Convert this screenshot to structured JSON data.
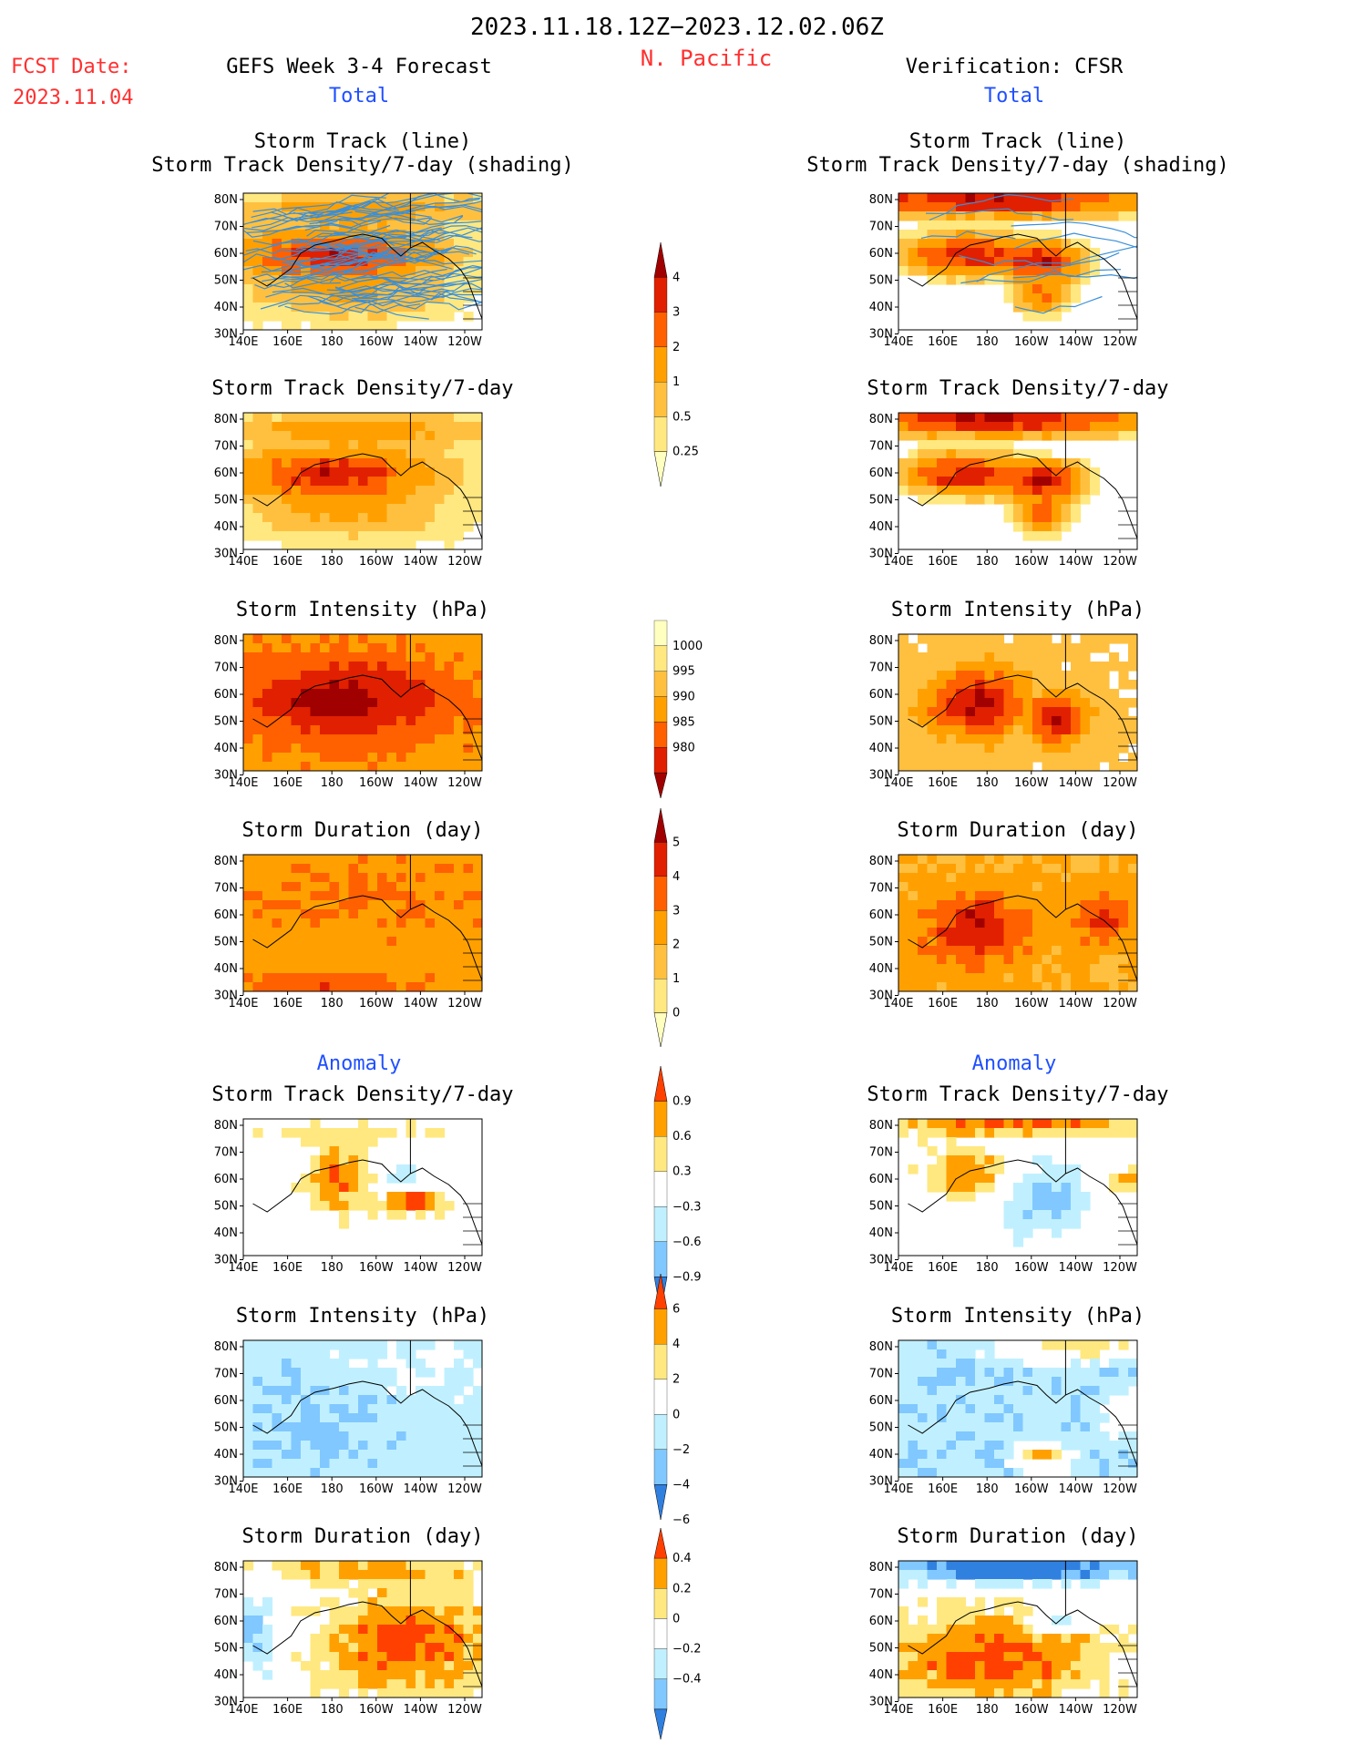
{
  "header": {
    "date_range": "2023.11.18.12Z−2023.12.02.06Z",
    "region": "N. Pacific",
    "fcst_label": "FCST Date:",
    "fcst_date": "2023.11.04",
    "left_title": "GEFS Week 3-4 Forecast",
    "right_title": "Verification: CFSR",
    "total_label": "Total",
    "anomaly_label": "Anomaly"
  },
  "map_axes": {
    "lat_ticks": [
      "80N",
      "70N",
      "60N",
      "50N",
      "40N",
      "30N"
    ],
    "lon_ticks": [
      "140E",
      "160E",
      "180",
      "160W",
      "140W",
      "120W"
    ]
  },
  "colors": {
    "total_scale": [
      "#ffffc0",
      "#ffe880",
      "#ffc040",
      "#ffa000",
      "#ff6000",
      "#e02000",
      "#a00000"
    ],
    "anomaly_pos": [
      "#ffe880",
      "#ffa000",
      "#ff4000"
    ],
    "anomaly_neg": [
      "#c0f0ff",
      "#80c8ff",
      "#3080e0"
    ],
    "track_line": "#3a8fd8",
    "text_red": "#ff3030",
    "text_blue": "#2050ff"
  },
  "colorbars": [
    {
      "id": "density-total",
      "labels": [
        "4",
        "3",
        "2",
        "1",
        "0.5",
        "0.25"
      ]
    },
    {
      "id": "intensity-total",
      "labels": [
        "1000",
        "995",
        "990",
        "985",
        "980"
      ]
    },
    {
      "id": "duration-total",
      "labels": [
        "5",
        "4",
        "3",
        "2",
        "1",
        "0"
      ]
    },
    {
      "id": "density-anom",
      "labels": [
        "0.9",
        "0.6",
        "0.3",
        "−0.3",
        "−0.6",
        "−0.9"
      ]
    },
    {
      "id": "intensity-anom",
      "labels": [
        "6",
        "4",
        "2",
        "0",
        "−2",
        "−4",
        "−6"
      ]
    },
    {
      "id": "duration-anom",
      "labels": [
        "0.4",
        "0.2",
        "0",
        "−0.2",
        "−0.4"
      ]
    }
  ],
  "panels": [
    {
      "id": "l1",
      "title1": "Storm Track (line)",
      "title2": "Storm Track Density/7-day (shading)",
      "kind": "total",
      "tracks": true
    },
    {
      "id": "r1",
      "title1": "Storm Track (line)",
      "title2": "Storm Track Density/7-day (shading)",
      "kind": "total",
      "tracks": true
    },
    {
      "id": "l2",
      "title1": "Storm Track Density/7-day",
      "kind": "total"
    },
    {
      "id": "r2",
      "title1": "Storm Track Density/7-day",
      "kind": "total"
    },
    {
      "id": "l3",
      "title1": "Storm Intensity (hPa)",
      "kind": "total"
    },
    {
      "id": "r3",
      "title1": "Storm Intensity (hPa)",
      "kind": "total"
    },
    {
      "id": "l4",
      "title1": "Storm Duration (day)",
      "kind": "total"
    },
    {
      "id": "r4",
      "title1": "Storm Duration (day)",
      "kind": "total"
    },
    {
      "id": "l5",
      "title1": "Storm Track Density/7-day",
      "kind": "anomaly"
    },
    {
      "id": "r5",
      "title1": "Storm Track Density/7-day",
      "kind": "anomaly"
    },
    {
      "id": "l6",
      "title1": "Storm Intensity (hPa)",
      "kind": "anomaly"
    },
    {
      "id": "r6",
      "title1": "Storm Intensity (hPa)",
      "kind": "anomaly"
    },
    {
      "id": "l7",
      "title1": "Storm Duration (day)",
      "kind": "anomaly"
    },
    {
      "id": "r7",
      "title1": "Storm Duration (day)",
      "kind": "anomaly"
    }
  ],
  "chart_data": {
    "type": "heatmap",
    "title": "2023.11.18.12Z−2023.12.02.06Z",
    "region": "N. Pacific",
    "lat_range": [
      25,
      85
    ],
    "lon_range": [
      140,
      290
    ],
    "note_fields": [
      "Storm Track Density/7-day",
      "Storm Intensity (hPa)",
      "Storm Duration (day)"
    ]
  }
}
